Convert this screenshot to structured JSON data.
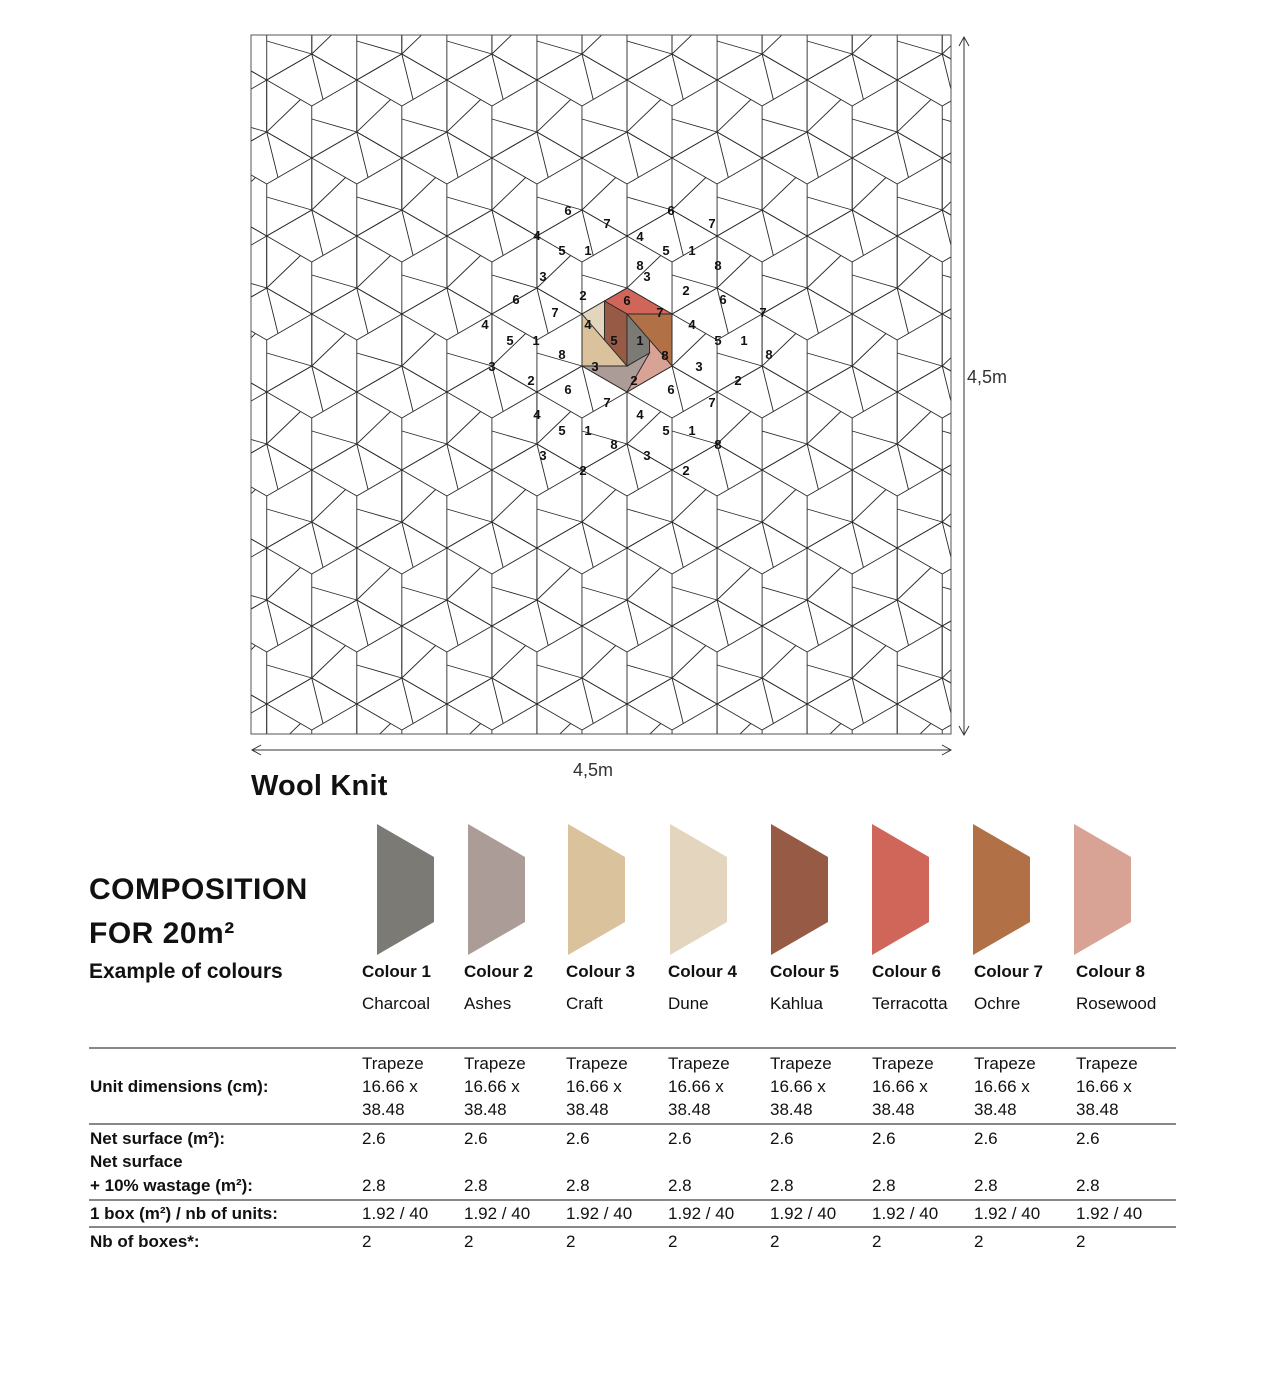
{
  "plan": {
    "width_label": "4,5m",
    "height_label": "4,5m",
    "centre_numbers": {
      "colour_1": "1",
      "colour_2": "2",
      "colour_3": "3",
      "colour_4": "4",
      "colour_5": "5",
      "colour_6": "6",
      "colour_7": "7",
      "colour_8": "8"
    }
  },
  "product": {
    "name": "Wool Knit"
  },
  "composition": {
    "title_line1": "COMPOSITION",
    "title_line2": "FOR 20m²",
    "example_label": "Example of colours",
    "colours": [
      {
        "number": "Colour 1",
        "name": "Charcoal",
        "hex": "#7c7a75"
      },
      {
        "number": "Colour 2",
        "name": "Ashes",
        "hex": "#ab9c98"
      },
      {
        "number": "Colour 3",
        "name": "Craft",
        "hex": "#d9c29c"
      },
      {
        "number": "Colour 4",
        "name": "Dune",
        "hex": "#e3d5be"
      },
      {
        "number": "Colour 5",
        "name": "Kahlua",
        "hex": "#975a44"
      },
      {
        "number": "Colour 6",
        "name": "Terracotta",
        "hex": "#d0665a"
      },
      {
        "number": "Colour 7",
        "name": "Ochre",
        "hex": "#b17046"
      },
      {
        "number": "Colour 8",
        "name": "Rosewood",
        "hex": "#d8a294"
      }
    ]
  },
  "table": {
    "unit_dimensions_label": "Unit dimensions (cm):",
    "net_surface_label": "Net surface (m²):",
    "wastage_label_line1": "Net surface",
    "wastage_label_line2": "+ 10% wastage (m²):",
    "box_label": "1 box (m²) / nb of units:",
    "boxes_label": "Nb of boxes*:",
    "unit_dimensions": [
      "Trapeze 16.66 x 38.48",
      "Trapeze 16.66 x 38.48",
      "Trapeze 16.66 x 38.48",
      "Trapeze 16.66 x 38.48",
      "Trapeze 16.66 x 38.48",
      "Trapeze 16.66 x 38.48",
      "Trapeze 16.66 x 38.48",
      "Trapeze 16.66 x 38.48"
    ],
    "net_surface": [
      "2.6",
      "2.6",
      "2.6",
      "2.6",
      "2.6",
      "2.6",
      "2.6",
      "2.6"
    ],
    "net_surface_wastage": [
      "2.8",
      "2.8",
      "2.8",
      "2.8",
      "2.8",
      "2.8",
      "2.8",
      "2.8"
    ],
    "box_units": [
      "1.92 / 40",
      "1.92 / 40",
      "1.92 / 40",
      "1.92 / 40",
      "1.92 / 40",
      "1.92 / 40",
      "1.92 / 40",
      "1.92 / 40"
    ],
    "nb_boxes": [
      "2",
      "2",
      "2",
      "2",
      "2",
      "2",
      "2",
      "2"
    ]
  }
}
